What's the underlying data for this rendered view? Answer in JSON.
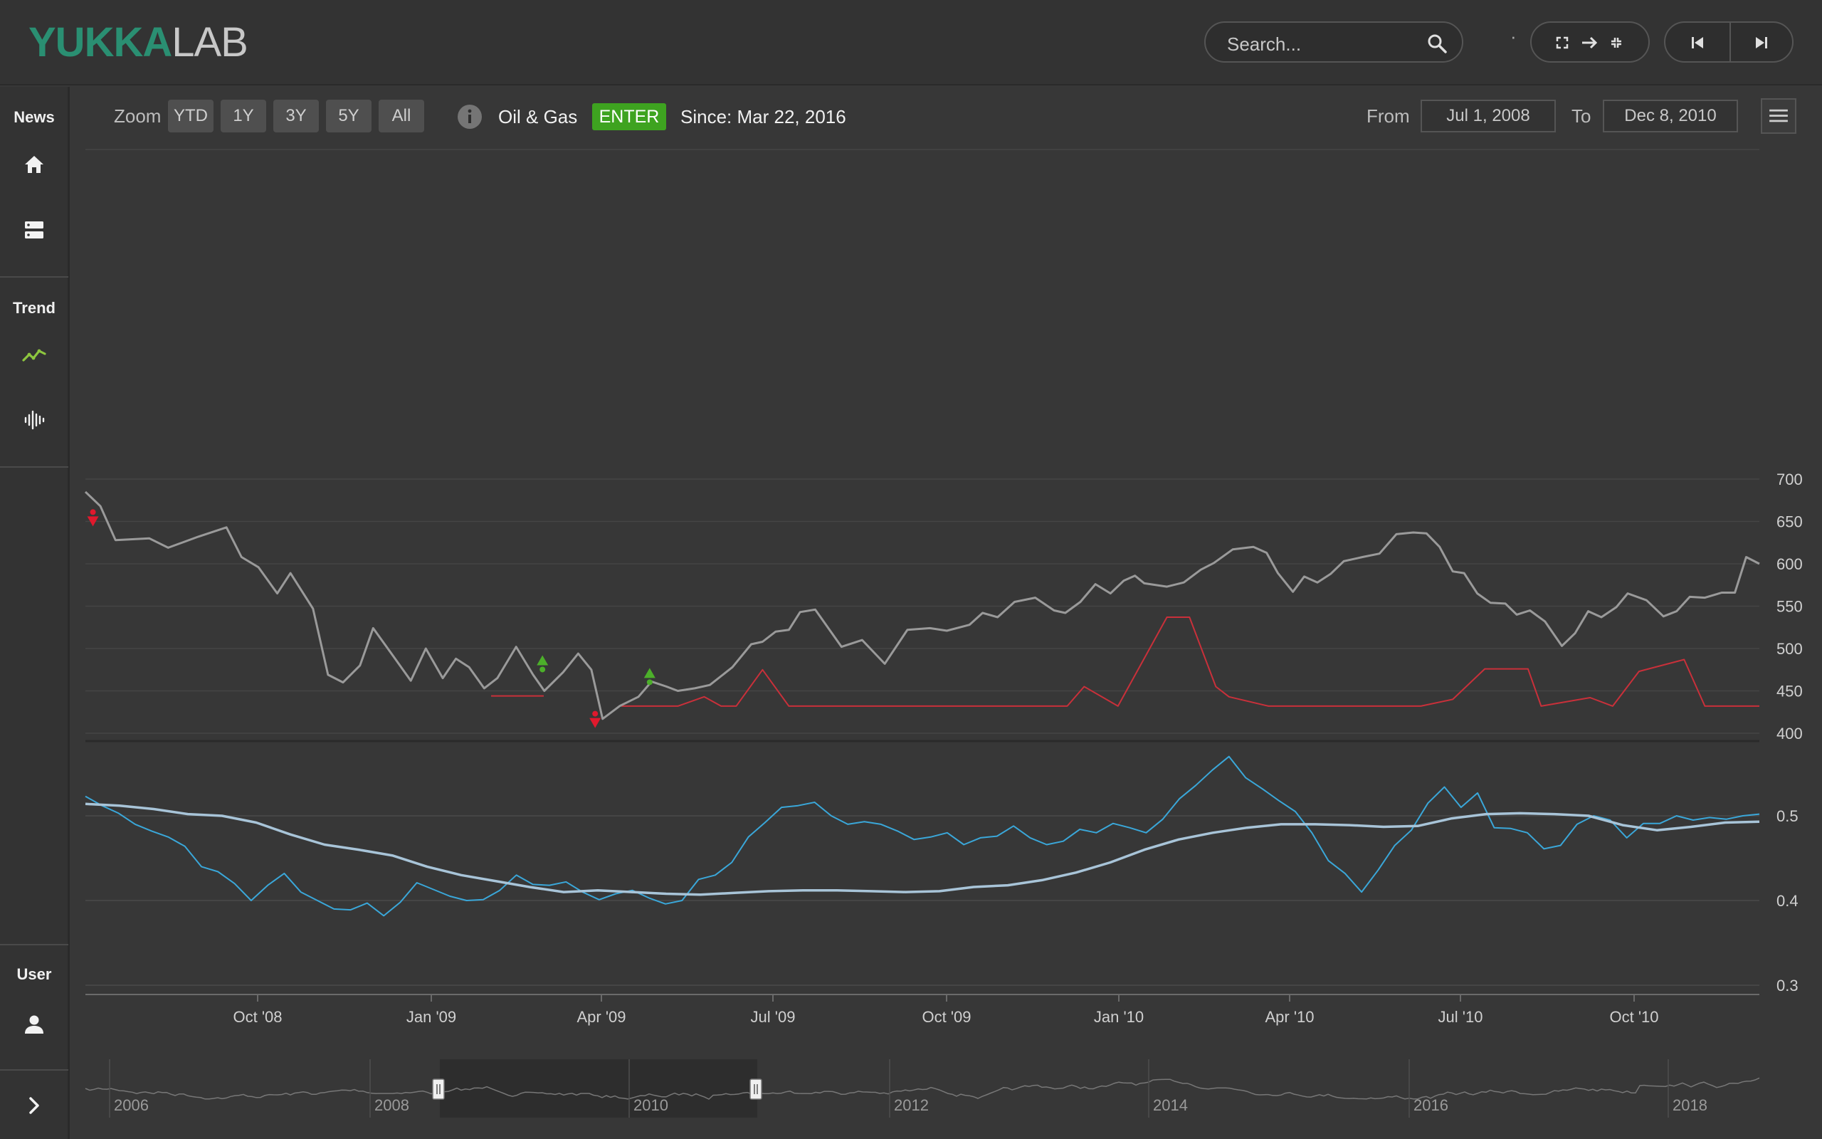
{
  "logo": {
    "bold": "YUKKA",
    "light": "LAB"
  },
  "header": {
    "search_placeholder": "Search...",
    "dot": "·",
    "icons": [
      "search-icon",
      "fullscreen-icon",
      "arrow-right-icon",
      "exit-fullscreen-icon",
      "skip-back-icon",
      "skip-forward-icon"
    ]
  },
  "sidebar": {
    "news_label": "News",
    "trend_label": "Trend",
    "user_label": "User",
    "icons": [
      "home-icon",
      "server-icon",
      "trend-line-icon",
      "waveform-icon",
      "user-icon",
      "chevron-right-icon"
    ]
  },
  "toolbar": {
    "zoom_label": "Zoom",
    "zoom_options": [
      "YTD",
      "1Y",
      "3Y",
      "5Y",
      "All"
    ],
    "sector": "Oil & Gas",
    "signal_badge": "ENTER",
    "since": "Since: Mar 22, 2016",
    "from_label": "From",
    "from_date": "Jul 1, 2008",
    "to_label": "To",
    "to_date": "Dec 8, 2010"
  },
  "colors": {
    "price_line": "#9a9a9a",
    "signal_line": "#c9303a",
    "sentiment_line": "#3aa7d9",
    "sentiment_avg": "#a8c4d8",
    "enter_badge": "#3ea320",
    "logo_accent": "#2a8f72",
    "trend_icon": "#8dc63f"
  },
  "chart_data": [
    {
      "type": "line",
      "title": "",
      "ylim": [
        400,
        700
      ],
      "y_ticks": [
        "700",
        "650",
        "600",
        "550",
        "500",
        "450",
        "400"
      ],
      "x_ticks": [
        "Oct '08",
        "Jan '09",
        "Apr '09",
        "Jul '09",
        "Oct '09",
        "Jan '10",
        "Apr '10",
        "Jul '10",
        "Oct '10"
      ],
      "x_range": [
        "2008-07-01",
        "2010-12-08"
      ],
      "series": [
        {
          "role": "price",
          "x": [
            "2008-07-01",
            "2008-07-09",
            "2008-07-17",
            "2008-08-04",
            "2008-08-14",
            "2008-08-30",
            "2008-09-14",
            "2008-09-22",
            "2008-10-01",
            "2008-10-11",
            "2008-10-18",
            "2008-10-30",
            "2008-11-07",
            "2008-11-15",
            "2008-11-24",
            "2008-12-01",
            "2008-12-12",
            "2008-12-21",
            "2008-12-29",
            "2009-01-07",
            "2009-01-14",
            "2009-01-21",
            "2009-01-29",
            "2009-02-05",
            "2009-02-15",
            "2009-02-24",
            "2009-03-02",
            "2009-03-12",
            "2009-03-20",
            "2009-03-27",
            "2009-04-02",
            "2009-04-11",
            "2009-04-21",
            "2009-04-28",
            "2009-05-06",
            "2009-05-12",
            "2009-05-21",
            "2009-05-29",
            "2009-06-10",
            "2009-06-20",
            "2009-06-26",
            "2009-07-03",
            "2009-07-10",
            "2009-07-16",
            "2009-07-24",
            "2009-08-07",
            "2009-08-18",
            "2009-08-30",
            "2009-09-11",
            "2009-09-23",
            "2009-10-02",
            "2009-10-14",
            "2009-10-21",
            "2009-10-29",
            "2009-11-07",
            "2009-11-18",
            "2009-11-28",
            "2009-12-04",
            "2009-12-12",
            "2009-12-20",
            "2009-12-28",
            "2010-01-04",
            "2010-01-10",
            "2010-01-15",
            "2010-01-27",
            "2010-02-05",
            "2010-02-14",
            "2010-02-21",
            "2010-03-03",
            "2010-03-14",
            "2010-03-21",
            "2010-03-27",
            "2010-04-04",
            "2010-04-10",
            "2010-04-17",
            "2010-04-24",
            "2010-05-01",
            "2010-05-11",
            "2010-05-20",
            "2010-05-29",
            "2010-06-07",
            "2010-06-14",
            "2010-06-21",
            "2010-06-28",
            "2010-07-04",
            "2010-07-11",
            "2010-07-18",
            "2010-07-26",
            "2010-08-01",
            "2010-08-08",
            "2010-08-16",
            "2010-08-25",
            "2010-09-01",
            "2010-09-08",
            "2010-09-15",
            "2010-09-23",
            "2010-09-29",
            "2010-10-09",
            "2010-10-18",
            "2010-10-25",
            "2010-11-01",
            "2010-11-09",
            "2010-11-18",
            "2010-11-25",
            "2010-12-01",
            "2010-12-08"
          ],
          "y": [
            685,
            668,
            628,
            630,
            619,
            632,
            643,
            608,
            596,
            565,
            589,
            547,
            469,
            460,
            480,
            524,
            490,
            462,
            500,
            465,
            488,
            478,
            453,
            465,
            502,
            469,
            450,
            472,
            494,
            475,
            417,
            432,
            443,
            461,
            455,
            450,
            453,
            457,
            478,
            505,
            508,
            520,
            522,
            543,
            546,
            502,
            510,
            482,
            522,
            524,
            521,
            528,
            542,
            537,
            555,
            560,
            545,
            542,
            555,
            576,
            565,
            580,
            586,
            577,
            573,
            578,
            593,
            601,
            617,
            620,
            613,
            589,
            567,
            585,
            578,
            588,
            603,
            608,
            612,
            635,
            637,
            636,
            620,
            591,
            589,
            565,
            554,
            553,
            540,
            545,
            532,
            503,
            518,
            544,
            537,
            549,
            565,
            557,
            538,
            544,
            561,
            560,
            566,
            566,
            608,
            600
          ]
        },
        {
          "role": "signal",
          "x": [
            "2009-04-12",
            "2009-05-12",
            "2009-05-26",
            "2009-06-04",
            "2009-06-12",
            "2009-06-26",
            "2009-07-10",
            "2009-10-01",
            "2009-12-05",
            "2009-12-14",
            "2010-01-01",
            "2010-01-27",
            "2010-02-08",
            "2010-02-22",
            "2010-03-01",
            "2010-03-22",
            "2010-05-01",
            "2010-06-11",
            "2010-06-28",
            "2010-07-15",
            "2010-08-07",
            "2010-08-14",
            "2010-09-09",
            "2010-09-21",
            "2010-10-05",
            "2010-10-29",
            "2010-11-09",
            "2010-12-08"
          ],
          "y": [
            432,
            432,
            443,
            432,
            432,
            475,
            432,
            432,
            432,
            455,
            432,
            537,
            537,
            455,
            443,
            432,
            432,
            432,
            440,
            476,
            476,
            432,
            442,
            432,
            473,
            487,
            432,
            432
          ]
        }
      ],
      "markers": [
        {
          "date": "2008-07-05",
          "type": "sell",
          "price": 656
        },
        {
          "date": "2009-03-01",
          "type": "buy",
          "price": 487
        },
        {
          "date": "2009-03-29",
          "type": "sell",
          "price": 418
        },
        {
          "date": "2009-04-27",
          "type": "buy",
          "price": 472
        }
      ]
    },
    {
      "type": "line",
      "title": "",
      "ylim": [
        0.3,
        0.6
      ],
      "y_ticks": [
        "0.5",
        "0.4",
        "0.3"
      ],
      "series": [
        {
          "role": "sentiment",
          "y": [
            0.523,
            0.512,
            0.503,
            0.49,
            0.482,
            0.475,
            0.464,
            0.44,
            0.434,
            0.42,
            0.4,
            0.418,
            0.432,
            0.41,
            0.4,
            0.39,
            0.389,
            0.397,
            0.382,
            0.398,
            0.421,
            0.413,
            0.405,
            0.4,
            0.401,
            0.412,
            0.43,
            0.419,
            0.418,
            0.422,
            0.41,
            0.401,
            0.408,
            0.412,
            0.403,
            0.396,
            0.4,
            0.425,
            0.43,
            0.445,
            0.475,
            0.492,
            0.51,
            0.512,
            0.516,
            0.5,
            0.49,
            0.493,
            0.49,
            0.482,
            0.472,
            0.475,
            0.48,
            0.466,
            0.474,
            0.476,
            0.488,
            0.474,
            0.466,
            0.47,
            0.484,
            0.48,
            0.491,
            0.486,
            0.48,
            0.496,
            0.52,
            0.536,
            0.554,
            0.57,
            0.545,
            0.532,
            0.518,
            0.505,
            0.48,
            0.447,
            0.432,
            0.41,
            0.436,
            0.465,
            0.483,
            0.515,
            0.534,
            0.51,
            0.527,
            0.486,
            0.485,
            0.48,
            0.461,
            0.465,
            0.49,
            0.5,
            0.495,
            0.474,
            0.491,
            0.491,
            0.5,
            0.495,
            0.498,
            0.496,
            0.5,
            0.502
          ],
          "note": ""
        },
        {
          "role": "average",
          "y": [
            0.514,
            0.512,
            0.508,
            0.502,
            0.5,
            0.492,
            0.478,
            0.466,
            0.46,
            0.453,
            0.44,
            0.43,
            0.423,
            0.416,
            0.41,
            0.412,
            0.41,
            0.408,
            0.407,
            0.409,
            0.411,
            0.412,
            0.412,
            0.411,
            0.41,
            0.411,
            0.416,
            0.418,
            0.424,
            0.433,
            0.445,
            0.46,
            0.472,
            0.48,
            0.486,
            0.49,
            0.49,
            0.489,
            0.487,
            0.488,
            0.497,
            0.502,
            0.503,
            0.502,
            0.5,
            0.489,
            0.483,
            0.487,
            0.492,
            0.493
          ]
        }
      ]
    },
    {
      "type": "area",
      "title": "",
      "x_ticks": [
        "2006",
        "2008",
        "2010",
        "2012",
        "2014",
        "2016",
        "2018"
      ],
      "selected_range": [
        "Jul 1, 2008",
        "Dec 8, 2010"
      ]
    }
  ]
}
